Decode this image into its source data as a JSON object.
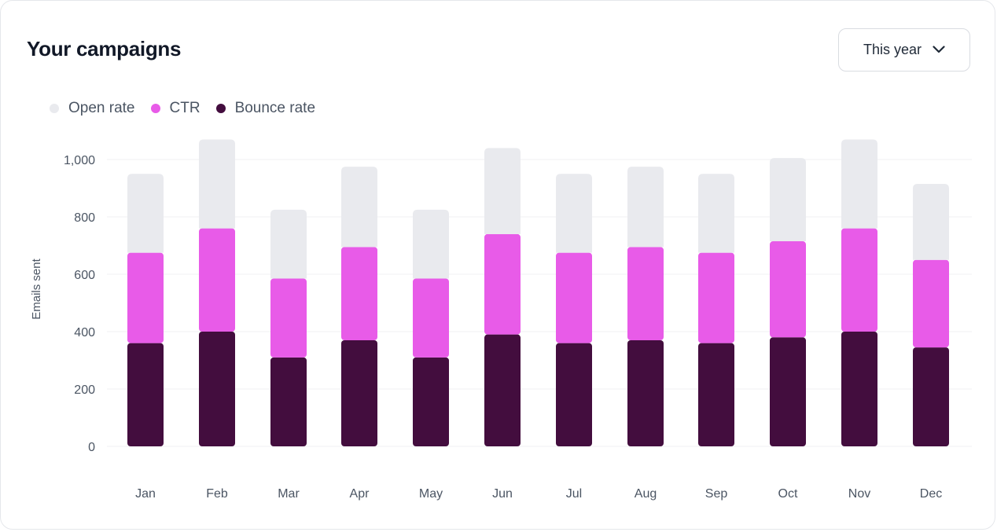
{
  "header": {
    "title": "Your campaigns",
    "period_label": "This year"
  },
  "icons": {
    "dropdown": "chevron-down-icon"
  },
  "colors": {
    "open_rate": "#e9eaee",
    "ctr": "#e85be8",
    "bounce_rate": "#430d3e",
    "grid": "#f0f1f3",
    "axis_text": "#4b5563"
  },
  "chart_data": {
    "type": "bar",
    "stacked": true,
    "title": "Your campaigns",
    "xlabel": "",
    "ylabel": "Emails sent",
    "ylim": [
      0,
      1000
    ],
    "yticks": [
      0,
      200,
      400,
      600,
      800,
      1000
    ],
    "ytick_labels": [
      "0",
      "200",
      "400",
      "600",
      "800",
      "1,000"
    ],
    "categories": [
      "Jan",
      "Feb",
      "Mar",
      "Apr",
      "May",
      "Jun",
      "Jul",
      "Aug",
      "Sep",
      "Oct",
      "Nov",
      "Dec"
    ],
    "legend_position": "top-left",
    "series": [
      {
        "name": "Bounce rate",
        "color_key": "bounce_rate",
        "values": [
          360,
          400,
          310,
          370,
          310,
          390,
          360,
          370,
          360,
          380,
          400,
          345
        ]
      },
      {
        "name": "CTR",
        "color_key": "ctr",
        "values": [
          315,
          360,
          275,
          325,
          275,
          350,
          315,
          325,
          315,
          335,
          360,
          305
        ]
      },
      {
        "name": "Open rate",
        "color_key": "open_rate",
        "values": [
          275,
          310,
          240,
          280,
          240,
          300,
          275,
          280,
          275,
          290,
          310,
          265
        ]
      }
    ],
    "legend": [
      "Open rate",
      "CTR",
      "Bounce rate"
    ]
  }
}
